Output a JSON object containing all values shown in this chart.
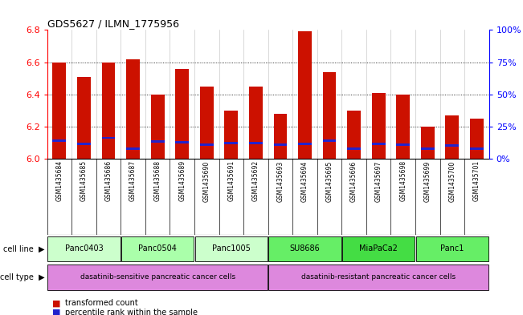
{
  "title": "GDS5627 / ILMN_1775956",
  "samples": [
    "GSM1435684",
    "GSM1435685",
    "GSM1435686",
    "GSM1435687",
    "GSM1435688",
    "GSM1435689",
    "GSM1435690",
    "GSM1435691",
    "GSM1435692",
    "GSM1435693",
    "GSM1435694",
    "GSM1435695",
    "GSM1435696",
    "GSM1435697",
    "GSM1435698",
    "GSM1435699",
    "GSM1435700",
    "GSM1435701"
  ],
  "bar_values": [
    6.6,
    6.51,
    6.6,
    6.62,
    6.4,
    6.56,
    6.45,
    6.3,
    6.45,
    6.28,
    6.79,
    6.54,
    6.3,
    6.41,
    6.4,
    6.2,
    6.27,
    6.25
  ],
  "blue_markers": [
    6.115,
    6.095,
    6.13,
    6.065,
    6.11,
    6.105,
    6.09,
    6.1,
    6.1,
    6.09,
    6.095,
    6.115,
    6.065,
    6.095,
    6.09,
    6.065,
    6.085,
    6.065
  ],
  "ymin": 6.0,
  "ymax": 6.8,
  "bar_color": "#CC1100",
  "blue_color": "#2222CC",
  "bar_width": 0.55,
  "cell_lines": [
    {
      "label": "Panc0403",
      "start": 0,
      "end": 2,
      "color": "#ccffcc"
    },
    {
      "label": "Panc0504",
      "start": 3,
      "end": 5,
      "color": "#aaffaa"
    },
    {
      "label": "Panc1005",
      "start": 6,
      "end": 8,
      "color": "#ccffcc"
    },
    {
      "label": "SU8686",
      "start": 9,
      "end": 11,
      "color": "#66ee66"
    },
    {
      "label": "MiaPaCa2",
      "start": 12,
      "end": 14,
      "color": "#44dd44"
    },
    {
      "label": "Panc1",
      "start": 15,
      "end": 17,
      "color": "#66ee66"
    }
  ],
  "cell_types": [
    {
      "label": "dasatinib-sensitive pancreatic cancer cells",
      "start": 0,
      "end": 8,
      "color": "#dd88dd"
    },
    {
      "label": "dasatinib-resistant pancreatic cancer cells",
      "start": 9,
      "end": 17,
      "color": "#dd88dd"
    }
  ],
  "legend_items": [
    {
      "label": "transformed count",
      "color": "#CC1100"
    },
    {
      "label": "percentile rank within the sample",
      "color": "#2222CC"
    }
  ],
  "right_yticks": [
    0,
    25,
    50,
    75,
    100
  ],
  "right_yticklabels": [
    "0%",
    "25%",
    "50%",
    "75%",
    "100%"
  ],
  "bg_color": "#ffffff",
  "plot_bg": "#ffffff",
  "sample_bg": "#cccccc",
  "ytick_vals": [
    6.0,
    6.2,
    6.4,
    6.6,
    6.8
  ],
  "grid_lines": [
    6.2,
    6.4,
    6.6
  ]
}
